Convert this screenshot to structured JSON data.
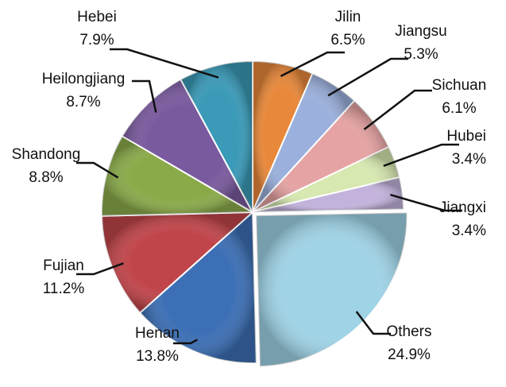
{
  "chart_data": {
    "type": "pie",
    "categories": [
      "Jilin",
      "Jiangsu",
      "Sichuan",
      "Hubei",
      "Jiangxi",
      "Others",
      "Henan",
      "Fujian",
      "Shandong",
      "Heilongjiang",
      "Hebei"
    ],
    "values": [
      6.5,
      5.3,
      6.1,
      3.4,
      3.4,
      24.9,
      13.8,
      11.2,
      8.8,
      8.7,
      7.9
    ],
    "value_labels": [
      "6.5%",
      "5.3%",
      "6.1%",
      "3.4%",
      "3.4%",
      "24.9%",
      "13.8%",
      "11.2%",
      "8.8%",
      "8.7%",
      "7.9%"
    ],
    "colors": [
      "#e8883a",
      "#9bb0dc",
      "#e6a3a3",
      "#d7e8b0",
      "#c3b3dc",
      "#9fd3e6",
      "#3c6fb5",
      "#c0454a",
      "#8aaa4a",
      "#7a5a9e",
      "#3a9ab8"
    ]
  }
}
